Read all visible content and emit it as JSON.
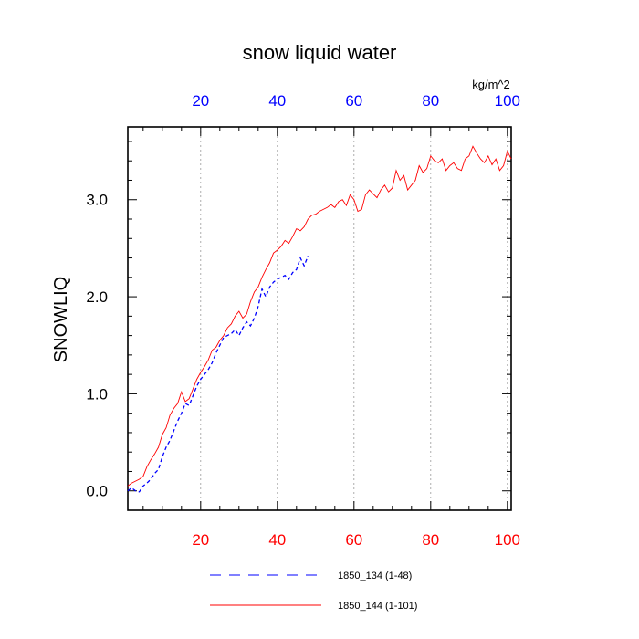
{
  "chart_data": {
    "type": "line",
    "title": "snow liquid water",
    "ylabel": "SNOWLIQ",
    "units_label": "kg/m^2",
    "xlim": [
      1,
      101
    ],
    "ylim": [
      -0.2,
      3.75
    ],
    "x_ticks": [
      20,
      40,
      60,
      80,
      100
    ],
    "y_ticks": [
      0.0,
      1.0,
      2.0,
      3.0
    ],
    "y_tick_labels": [
      "0.0",
      "1.0",
      "2.0",
      "3.0"
    ],
    "grid": "vertical dotted at x ticks",
    "colors": {
      "bottom_axis": "#ff0000",
      "top_axis": "#0000ff"
    },
    "series": [
      {
        "name": "1850_134 (1-48)",
        "color": "#0000ff",
        "dash": "dashed",
        "x": [
          1,
          2,
          3,
          4,
          5,
          6,
          7,
          8,
          9,
          10,
          11,
          12,
          13,
          14,
          15,
          16,
          17,
          18,
          19,
          20,
          21,
          22,
          23,
          24,
          25,
          26,
          27,
          28,
          29,
          30,
          31,
          32,
          33,
          34,
          35,
          36,
          37,
          38,
          39,
          40,
          41,
          42,
          43,
          44,
          45,
          46,
          47,
          48
        ],
        "y": [
          0.0,
          0.03,
          0.0,
          -0.01,
          0.05,
          0.08,
          0.12,
          0.18,
          0.22,
          0.35,
          0.45,
          0.52,
          0.62,
          0.72,
          0.8,
          0.9,
          0.88,
          0.98,
          1.08,
          1.15,
          1.2,
          1.25,
          1.32,
          1.42,
          1.5,
          1.58,
          1.6,
          1.62,
          1.66,
          1.6,
          1.68,
          1.74,
          1.7,
          1.78,
          1.9,
          2.08,
          2.0,
          2.1,
          2.15,
          2.18,
          2.2,
          2.22,
          2.18,
          2.25,
          2.28,
          2.4,
          2.32,
          2.42
        ]
      },
      {
        "name": "1850_144 (1-101)",
        "color": "#ff0000",
        "dash": "solid",
        "x": [
          1,
          2,
          3,
          4,
          5,
          6,
          7,
          8,
          9,
          10,
          11,
          12,
          13,
          14,
          15,
          16,
          17,
          18,
          19,
          20,
          21,
          22,
          23,
          24,
          25,
          26,
          27,
          28,
          29,
          30,
          31,
          32,
          33,
          34,
          35,
          36,
          37,
          38,
          39,
          40,
          41,
          42,
          43,
          44,
          45,
          46,
          47,
          48,
          49,
          50,
          51,
          52,
          53,
          54,
          55,
          56,
          57,
          58,
          59,
          60,
          61,
          62,
          63,
          64,
          65,
          66,
          67,
          68,
          69,
          70,
          71,
          72,
          73,
          74,
          75,
          76,
          77,
          78,
          79,
          80,
          81,
          82,
          83,
          84,
          85,
          86,
          87,
          88,
          89,
          90,
          91,
          92,
          93,
          94,
          95,
          96,
          97,
          98,
          99,
          100,
          101
        ],
        "y": [
          0.05,
          0.08,
          0.1,
          0.12,
          0.15,
          0.25,
          0.32,
          0.38,
          0.45,
          0.58,
          0.65,
          0.78,
          0.85,
          0.9,
          1.02,
          0.92,
          0.95,
          1.05,
          1.15,
          1.22,
          1.28,
          1.35,
          1.45,
          1.48,
          1.55,
          1.6,
          1.68,
          1.72,
          1.8,
          1.85,
          1.78,
          1.82,
          1.95,
          2.05,
          2.1,
          2.2,
          2.28,
          2.35,
          2.45,
          2.48,
          2.52,
          2.58,
          2.55,
          2.62,
          2.7,
          2.68,
          2.72,
          2.8,
          2.84,
          2.85,
          2.88,
          2.9,
          2.92,
          2.95,
          2.92,
          2.98,
          3.0,
          2.94,
          3.05,
          3.0,
          2.88,
          2.9,
          3.05,
          3.1,
          3.06,
          3.02,
          3.1,
          3.15,
          3.08,
          3.12,
          3.3,
          3.2,
          3.25,
          3.1,
          3.15,
          3.2,
          3.35,
          3.28,
          3.32,
          3.45,
          3.4,
          3.38,
          3.42,
          3.3,
          3.35,
          3.38,
          3.32,
          3.3,
          3.42,
          3.45,
          3.55,
          3.48,
          3.42,
          3.38,
          3.45,
          3.36,
          3.42,
          3.3,
          3.35,
          3.5,
          3.42
        ]
      }
    ]
  }
}
